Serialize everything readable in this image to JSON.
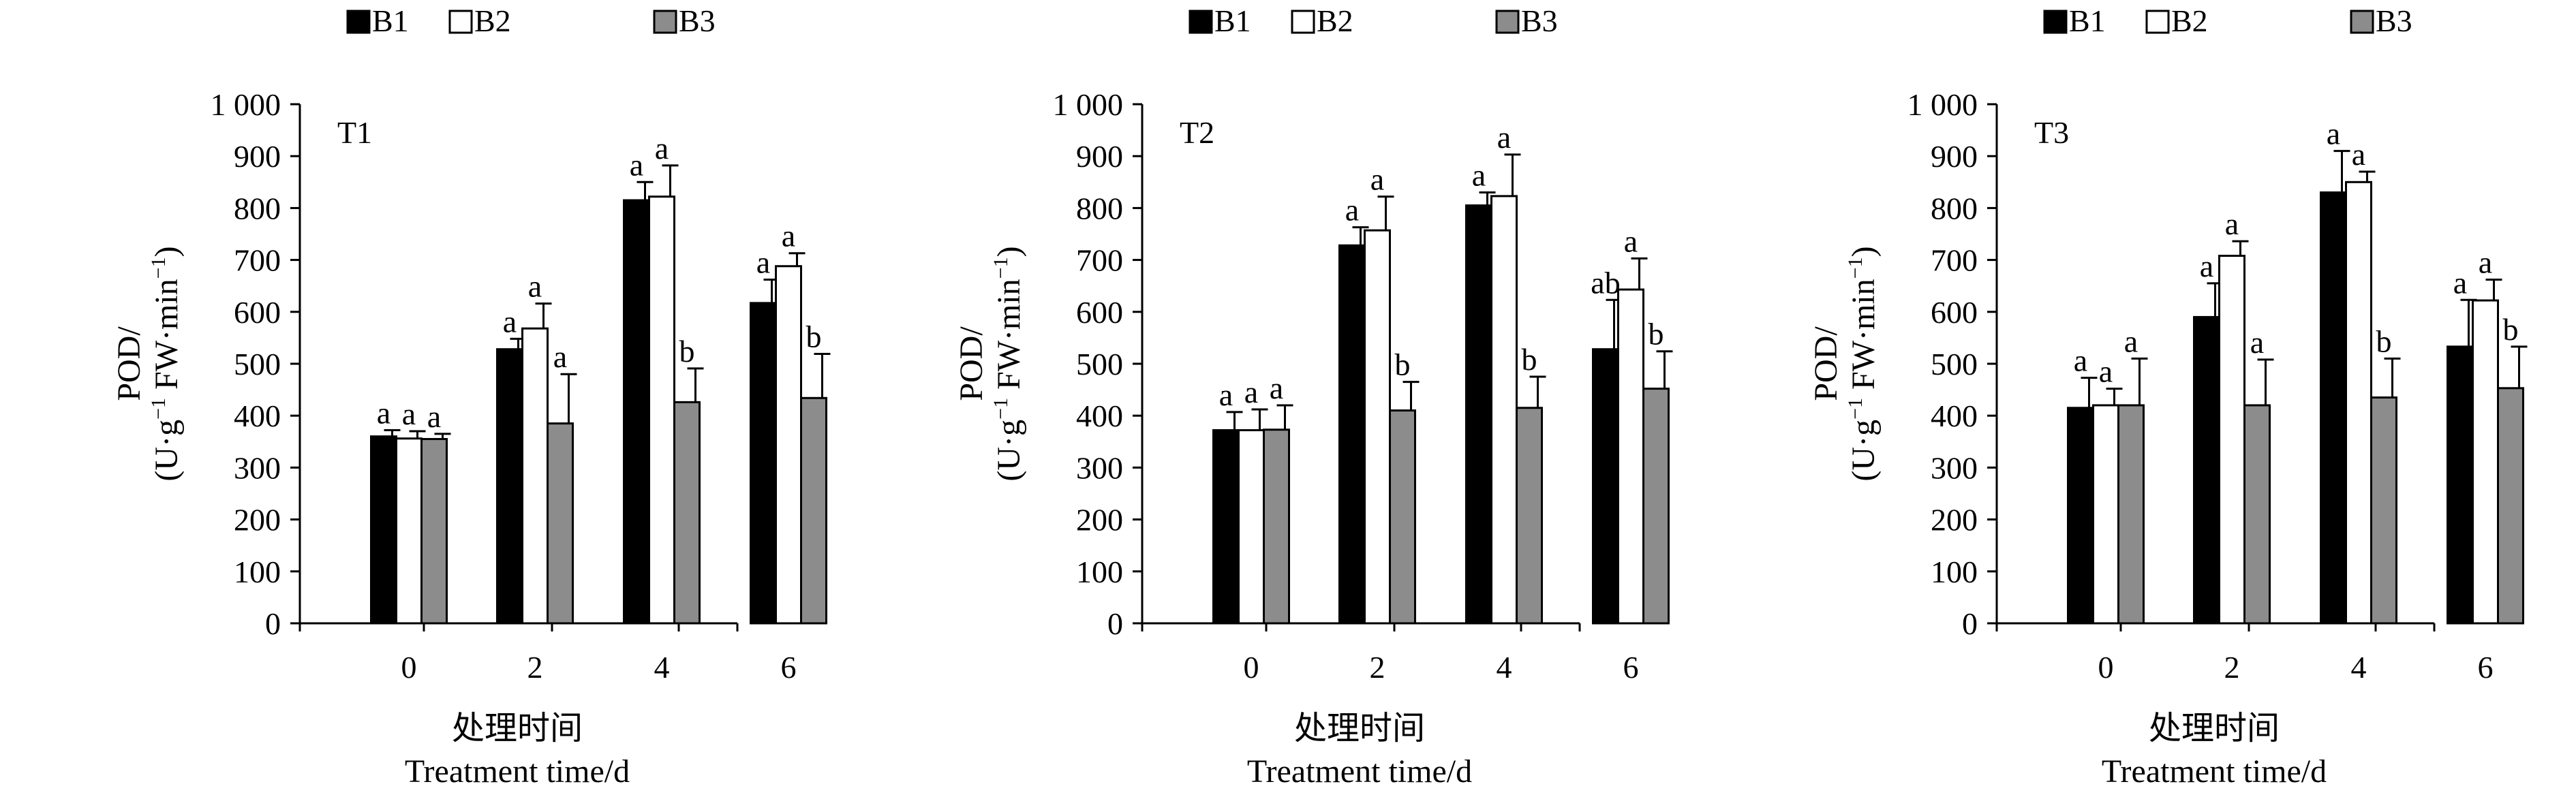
{
  "colors": {
    "B1": "#000000",
    "B2": "#ffffff",
    "B3": "#8c8c8c",
    "axis": "#000000"
  },
  "chart_data": [
    {
      "type": "bar",
      "panel_label": "T1",
      "categories": [
        "0",
        "2",
        "4",
        "6"
      ],
      "series": [
        {
          "name": "B1",
          "values": [
            360,
            528,
            815,
            617
          ],
          "errors": [
            12,
            20,
            35,
            45
          ],
          "letters": [
            "a",
            "a",
            "a",
            "a"
          ]
        },
        {
          "name": "B2",
          "values": [
            356,
            568,
            822,
            688
          ],
          "errors": [
            14,
            48,
            60,
            25
          ],
          "letters": [
            "a",
            "a",
            "a",
            "a"
          ]
        },
        {
          "name": "B3",
          "values": [
            355,
            385,
            426,
            434
          ],
          "errors": [
            10,
            95,
            65,
            85
          ],
          "letters": [
            "a",
            "a",
            "b",
            "b"
          ]
        }
      ],
      "ylabel_line1": "POD/",
      "ylabel_line2_parts": [
        "(U·g",
        "−1",
        " FW·min",
        "−1",
        ")"
      ],
      "xlabel_cn": "处理时间",
      "xlabel_en": "Treatment time/d",
      "ylim": [
        0,
        1000
      ],
      "yticks": [
        0,
        100,
        200,
        300,
        400,
        500,
        600,
        700,
        800,
        900,
        1000
      ],
      "ytick_labels": [
        "0",
        "100",
        "200",
        "300",
        "400",
        "500",
        "600",
        "700",
        "800",
        "900",
        "1 000"
      ]
    },
    {
      "type": "bar",
      "panel_label": "T2",
      "categories": [
        "0",
        "2",
        "4",
        "6"
      ],
      "series": [
        {
          "name": "B1",
          "values": [
            372,
            728,
            805,
            528
          ],
          "errors": [
            35,
            35,
            25,
            95
          ],
          "letters": [
            "a",
            "a",
            "a",
            "ab"
          ]
        },
        {
          "name": "B2",
          "values": [
            372,
            757,
            823,
            643
          ],
          "errors": [
            40,
            65,
            80,
            60
          ],
          "letters": [
            "a",
            "a",
            "a",
            "a"
          ]
        },
        {
          "name": "B3",
          "values": [
            373,
            410,
            415,
            452
          ],
          "errors": [
            47,
            55,
            60,
            72
          ],
          "letters": [
            "a",
            "b",
            "b",
            "b"
          ]
        }
      ],
      "ylabel_line1": "POD/",
      "ylabel_line2_parts": [
        "(U·g",
        "−1",
        " FW·min",
        "−1",
        ")"
      ],
      "xlabel_cn": "处理时间",
      "xlabel_en": "Treatment time/d",
      "ylim": [
        0,
        1000
      ],
      "yticks": [
        0,
        100,
        200,
        300,
        400,
        500,
        600,
        700,
        800,
        900,
        1000
      ],
      "ytick_labels": [
        "0",
        "100",
        "200",
        "300",
        "400",
        "500",
        "600",
        "700",
        "800",
        "900",
        "1 000"
      ]
    },
    {
      "type": "bar",
      "panel_label": "T3",
      "categories": [
        "0",
        "2",
        "4",
        "6"
      ],
      "series": [
        {
          "name": "B1",
          "values": [
            415,
            590,
            830,
            533
          ],
          "errors": [
            58,
            65,
            80,
            90
          ],
          "letters": [
            "a",
            "a",
            "a",
            "a"
          ]
        },
        {
          "name": "B2",
          "values": [
            420,
            708,
            850,
            622
          ],
          "errors": [
            32,
            28,
            20,
            40
          ],
          "letters": [
            "a",
            "a",
            "a",
            "a"
          ]
        },
        {
          "name": "B3",
          "values": [
            420,
            420,
            435,
            453
          ],
          "errors": [
            90,
            88,
            75,
            80
          ],
          "letters": [
            "a",
            "a",
            "b",
            "b"
          ]
        }
      ],
      "ylabel_line1": "POD/",
      "ylabel_line2_parts": [
        "(U·g",
        "−1",
        " FW·min",
        "−1",
        ")"
      ],
      "xlabel_cn": "处理时间",
      "xlabel_en": "Treatment time/d",
      "ylim": [
        0,
        1000
      ],
      "yticks": [
        0,
        100,
        200,
        300,
        400,
        500,
        600,
        700,
        800,
        900,
        1000
      ],
      "ytick_labels": [
        "0",
        "100",
        "200",
        "300",
        "400",
        "500",
        "600",
        "700",
        "800",
        "900",
        "1 000"
      ]
    }
  ]
}
